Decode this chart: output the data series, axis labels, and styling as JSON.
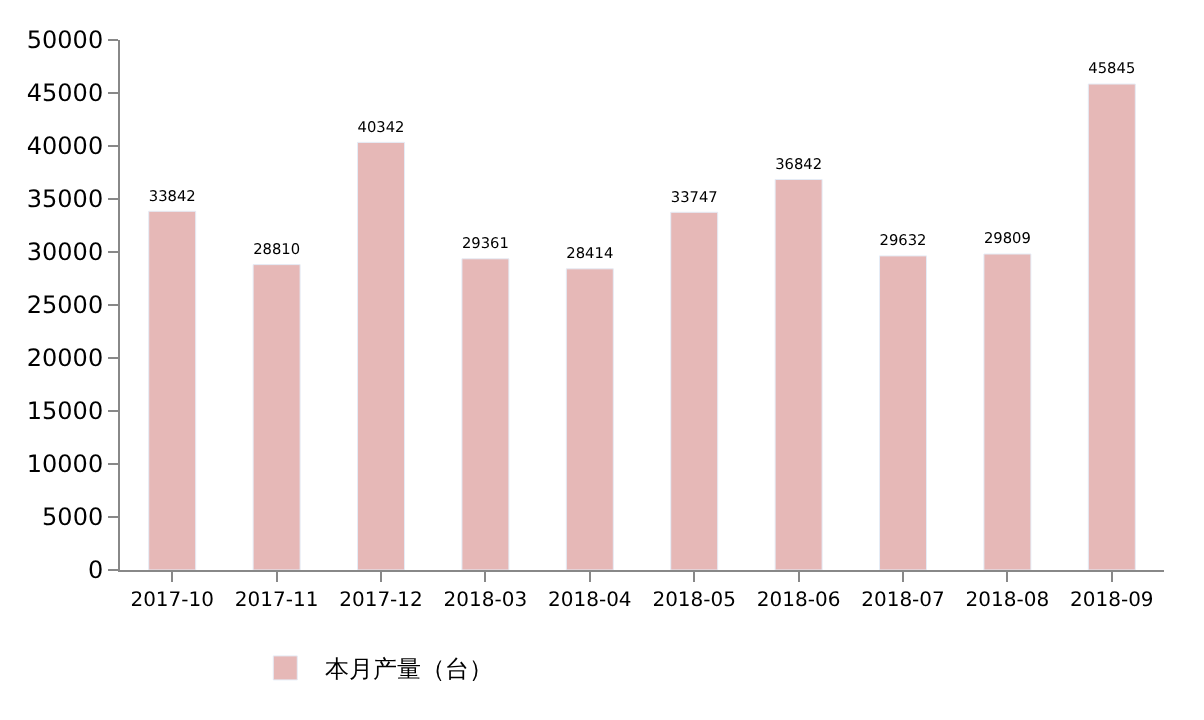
{
  "chart_data": {
    "type": "bar",
    "categories": [
      "2017-10",
      "2017-11",
      "2017-12",
      "2018-03",
      "2018-04",
      "2018-05",
      "2018-06",
      "2018-07",
      "2018-08",
      "2018-09"
    ],
    "series": [
      {
        "name": "本月产量（台）",
        "color": "#e6b8b7",
        "values": [
          33842,
          28810,
          40342,
          29361,
          28414,
          33747,
          36842,
          29632,
          29809,
          45845
        ]
      }
    ],
    "ylim": [
      0,
      50000
    ],
    "yticks": [
      0,
      5000,
      10000,
      15000,
      20000,
      25000,
      30000,
      35000,
      40000,
      45000,
      50000
    ],
    "data_labels": true,
    "legend": "bottom"
  }
}
